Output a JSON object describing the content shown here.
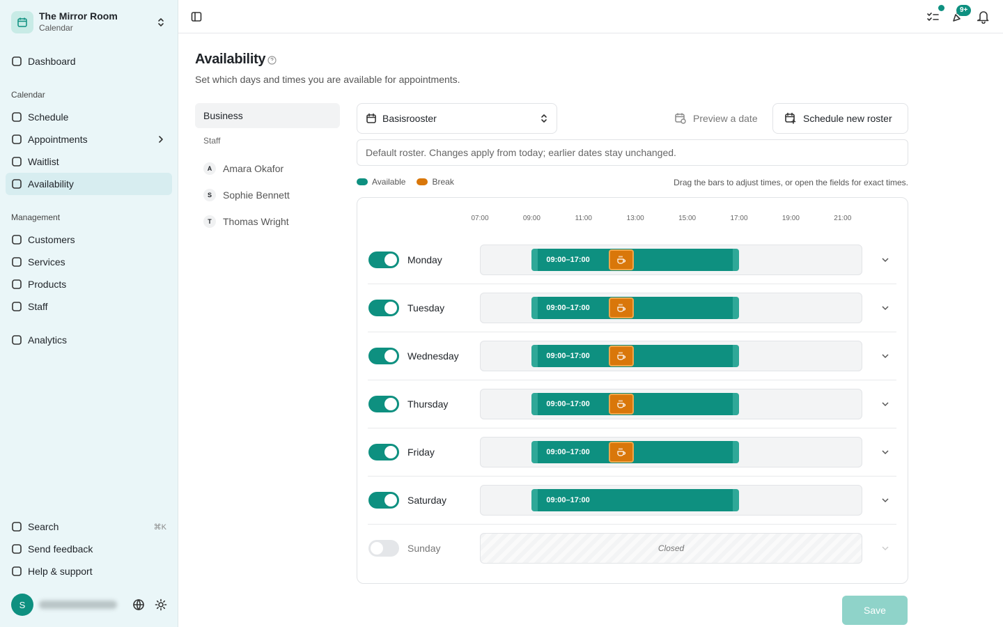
{
  "sidebar": {
    "brand": {
      "title": "The Mirror Room",
      "subtitle": "Calendar"
    },
    "nav_groups": [
      {
        "items": [
          {
            "label": "Dashboard"
          }
        ]
      },
      {
        "heading": "Calendar",
        "items": [
          {
            "label": "Schedule"
          },
          {
            "label": "Appointments",
            "expandable": true
          },
          {
            "label": "Waitlist"
          },
          {
            "label": "Availability",
            "active": true
          }
        ]
      },
      {
        "heading": "Management",
        "items": [
          {
            "label": "Customers"
          },
          {
            "label": "Services"
          },
          {
            "label": "Products"
          },
          {
            "label": "Staff"
          }
        ]
      },
      {
        "items": [
          {
            "label": "Analytics"
          }
        ]
      }
    ],
    "footer": [
      {
        "label": "Search",
        "shortcut": "⌘K"
      },
      {
        "label": "Send feedback"
      },
      {
        "label": "Help & support"
      }
    ],
    "avatar": "S"
  },
  "topbar": {
    "badge": "9+"
  },
  "page": {
    "title": "Availability",
    "subtitle": "Set which days and times you are available for appointments."
  },
  "tabs": {
    "business": "Business",
    "staff_heading": "Staff",
    "staff": [
      {
        "initial": "A",
        "name": "Amara Okafor"
      },
      {
        "initial": "S",
        "name": "Sophie Bennett"
      },
      {
        "initial": "T",
        "name": "Thomas Wright"
      }
    ]
  },
  "roster": {
    "selected": "Basisrooster",
    "preview": "Preview a date",
    "schedule": "Schedule new roster",
    "note": "Default roster. Changes apply from today; earlier dates stay unchanged."
  },
  "legend": [
    {
      "label": "Available",
      "color": "#0e9080"
    },
    {
      "label": "Break",
      "color": "#d9770a"
    }
  ],
  "hint": "Drag the bars to adjust times, or open the fields for exact times.",
  "timeline": {
    "ticks": [
      "07:00",
      "09:00",
      "11:00",
      "13:00",
      "15:00",
      "17:00",
      "19:00",
      "21:00"
    ],
    "days": [
      {
        "name": "Monday",
        "enabled": true,
        "range": "09:00–17:00",
        "break": true
      },
      {
        "name": "Tuesday",
        "enabled": true,
        "range": "09:00–17:00",
        "break": true
      },
      {
        "name": "Wednesday",
        "enabled": true,
        "range": "09:00–17:00",
        "break": true
      },
      {
        "name": "Thursday",
        "enabled": true,
        "range": "09:00–17:00",
        "break": true
      },
      {
        "name": "Friday",
        "enabled": true,
        "range": "09:00–17:00",
        "break": true
      },
      {
        "name": "Saturday",
        "enabled": true,
        "range": "09:00–17:00",
        "break": false
      },
      {
        "name": "Sunday",
        "enabled": false,
        "closed_label": "Closed"
      }
    ]
  },
  "save": "Save"
}
